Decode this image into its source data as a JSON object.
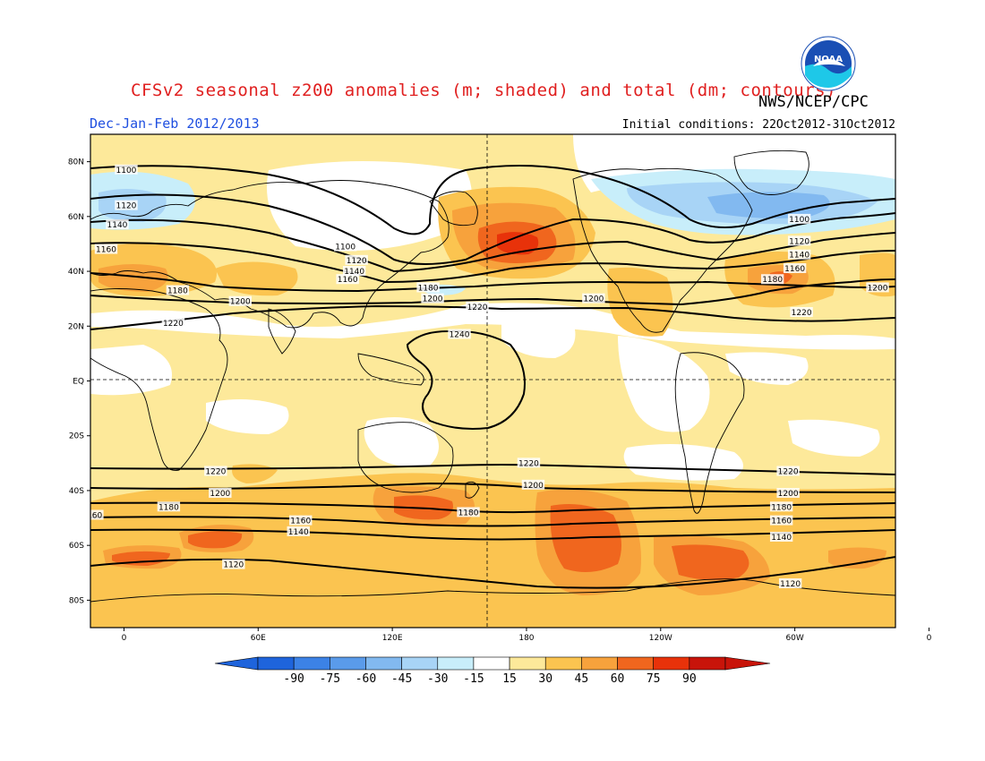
{
  "header": {
    "title": "CFSv2 seasonal z200 anomalies (m; shaded) and total (dm; contours)",
    "agency": "NWS/NCEP/CPC",
    "period": "Dec-Jan-Feb 2012/2013",
    "initial_conditions": "Initial conditions: 22Oct2012-31Oct2012",
    "logo_text": "NOAA"
  },
  "map": {
    "lat_ticks": [
      "80N",
      "60N",
      "40N",
      "20N",
      "EQ",
      "20S",
      "40S",
      "60S",
      "80S"
    ],
    "lon_ticks": [
      "0",
      "60E",
      "120E",
      "180",
      "120W",
      "60W",
      "0"
    ],
    "contour_labels": [
      {
        "text": "1100",
        "lon": 1,
        "lat": 77
      },
      {
        "text": "1120",
        "lon": 1,
        "lat": 64
      },
      {
        "text": "1140",
        "lon": -3,
        "lat": 57
      },
      {
        "text": "1160",
        "lon": -8,
        "lat": 48
      },
      {
        "text": "1180",
        "lon": 24,
        "lat": 33
      },
      {
        "text": "1200",
        "lon": 52,
        "lat": 29
      },
      {
        "text": "1220",
        "lon": 22,
        "lat": 21
      },
      {
        "text": "1100",
        "lon": 99,
        "lat": 49
      },
      {
        "text": "1120",
        "lon": 104,
        "lat": 44
      },
      {
        "text": "1140",
        "lon": 103,
        "lat": 40
      },
      {
        "text": "1160",
        "lon": 100,
        "lat": 37
      },
      {
        "text": "1180",
        "lon": 136,
        "lat": 34
      },
      {
        "text": "1200",
        "lon": 138,
        "lat": 30
      },
      {
        "text": "1220",
        "lon": 158,
        "lat": 27
      },
      {
        "text": "1240",
        "lon": 150,
        "lat": 17
      },
      {
        "text": "1200",
        "lon": 210,
        "lat": 30
      },
      {
        "text": "1100",
        "lon": 302,
        "lat": 59
      },
      {
        "text": "1120",
        "lon": 302,
        "lat": 51
      },
      {
        "text": "1140",
        "lon": 302,
        "lat": 46
      },
      {
        "text": "1160",
        "lon": 300,
        "lat": 41
      },
      {
        "text": "1180",
        "lon": 290,
        "lat": 37
      },
      {
        "text": "1220",
        "lon": 303,
        "lat": 25
      },
      {
        "text": "1200",
        "lon": 337,
        "lat": 34
      },
      {
        "text": "1220",
        "lon": 41,
        "lat": -33
      },
      {
        "text": "1200",
        "lon": 43,
        "lat": -41
      },
      {
        "text": "1180",
        "lon": 20,
        "lat": -46
      },
      {
        "text": "1160",
        "lon": 79,
        "lat": -51
      },
      {
        "text": "1140",
        "lon": 78,
        "lat": -55
      },
      {
        "text": "1120",
        "lon": 49,
        "lat": -67
      },
      {
        "text": "1180",
        "lon": 154,
        "lat": -48
      },
      {
        "text": "1220",
        "lon": 181,
        "lat": -30
      },
      {
        "text": "1200",
        "lon": 183,
        "lat": -38
      },
      {
        "text": "1220",
        "lon": 297,
        "lat": -33
      },
      {
        "text": "1200",
        "lon": 297,
        "lat": -41
      },
      {
        "text": "1180",
        "lon": 294,
        "lat": -46
      },
      {
        "text": "1160",
        "lon": 294,
        "lat": -51
      },
      {
        "text": "1140",
        "lon": 294,
        "lat": -57
      },
      {
        "text": "1120",
        "lon": 298,
        "lat": -74
      },
      {
        "text": "60",
        "lon": -12,
        "lat": -49
      }
    ]
  },
  "colorbar": {
    "labels": [
      "-90",
      "-75",
      "-60",
      "-45",
      "-30",
      "-15",
      "15",
      "30",
      "45",
      "60",
      "75",
      "90"
    ],
    "colors": [
      "#1e64dc",
      "#3c82e6",
      "#5a9bea",
      "#82b9f0",
      "#a8d4f6",
      "#c8eefa",
      "#ffffff",
      "#fde99a",
      "#fbc450",
      "#f7a23c",
      "#f0661e",
      "#e8320a",
      "#c8140a"
    ]
  }
}
